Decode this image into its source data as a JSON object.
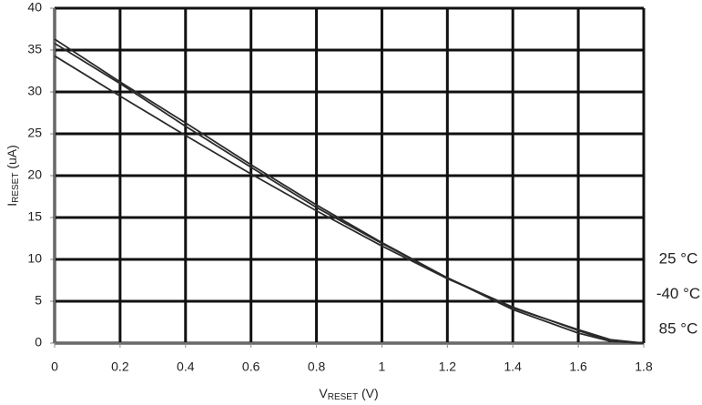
{
  "chart_data": {
    "type": "line",
    "xlabel_parts": [
      "V",
      "RESET",
      " (V)"
    ],
    "ylabel_parts": [
      "I",
      "RESET",
      " (uA)"
    ],
    "x": [
      0,
      0.2,
      0.4,
      0.6,
      0.8,
      1.0,
      1.2,
      1.4,
      1.6,
      1.7,
      1.8
    ],
    "series": [
      {
        "name": "25 °C",
        "color": "#2a2a2a",
        "values": [
          36.3,
          31.2,
          26.3,
          21.3,
          16.5,
          12.0,
          7.8,
          4.0,
          1.2,
          0.2,
          0
        ]
      },
      {
        "name": "-40 °C",
        "color": "#2a2a2a",
        "values": [
          35.8,
          31.0,
          25.9,
          21.0,
          16.2,
          11.9,
          7.8,
          4.2,
          1.6,
          0.4,
          0
        ]
      },
      {
        "name": "85 °C",
        "color": "#2a2a2a",
        "values": [
          34.3,
          29.5,
          24.8,
          20.2,
          15.8,
          11.6,
          7.7,
          4.3,
          1.5,
          0.2,
          0
        ]
      }
    ],
    "xlim": [
      0,
      1.8
    ],
    "xticks": [
      0,
      0.2,
      0.4,
      0.6,
      0.8,
      1,
      1.2,
      1.4,
      1.6,
      1.8
    ],
    "ylim": [
      0,
      40
    ],
    "yticks": [
      0,
      5,
      10,
      15,
      20,
      25,
      30,
      35,
      40
    ],
    "grid": true
  }
}
